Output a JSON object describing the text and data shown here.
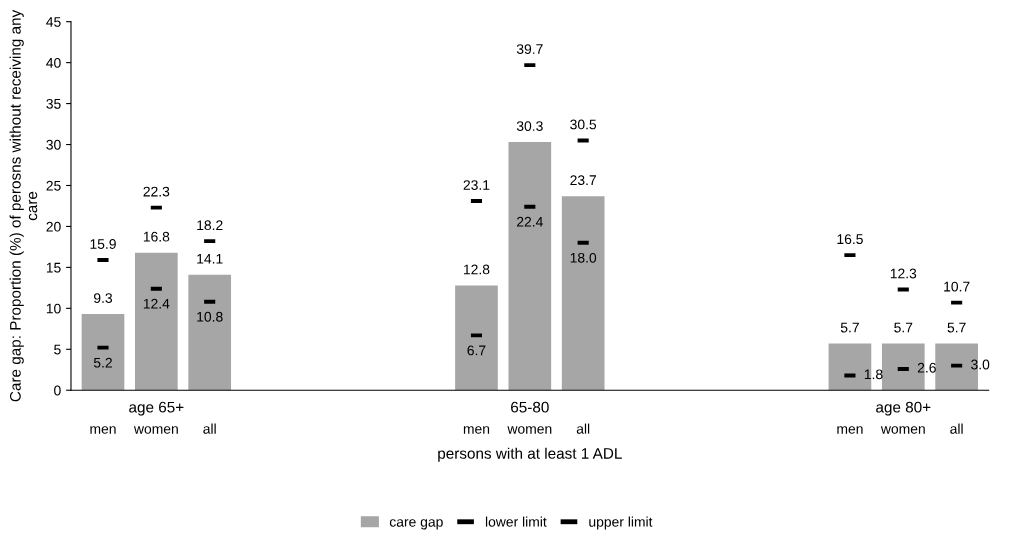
{
  "chart_data": {
    "type": "bar",
    "categories": [
      "men",
      "women",
      "all",
      null,
      null,
      null,
      null,
      "men",
      "women",
      "all",
      null,
      null,
      null,
      null,
      "men",
      "women",
      "all"
    ],
    "series": [
      {
        "name": "care gap",
        "color": "#a6a6a6",
        "values": [
          9.3,
          16.8,
          14.1,
          null,
          null,
          null,
          null,
          12.8,
          30.3,
          23.7,
          null,
          null,
          null,
          null,
          5.7,
          5.7,
          5.7
        ],
        "value_labels": [
          "9.3",
          "16.8",
          "14.1",
          null,
          null,
          null,
          null,
          "12.8",
          "30.3",
          "23.7",
          null,
          null,
          null,
          null,
          "5.7",
          "5.7",
          "5.7"
        ]
      },
      {
        "name": "lower limit",
        "type": "scatter",
        "color": "#000000",
        "values": [
          5.2,
          12.4,
          10.8,
          null,
          null,
          null,
          null,
          6.7,
          22.4,
          18.0,
          null,
          null,
          null,
          null,
          1.8,
          2.6,
          3.0
        ],
        "value_labels": [
          "5.2",
          "12.4",
          "10.8",
          null,
          null,
          null,
          null,
          "6.7",
          "22.4",
          "18.0",
          null,
          null,
          null,
          null,
          "1.8",
          "2.6",
          "3.0"
        ]
      },
      {
        "name": "upper limit",
        "type": "scatter",
        "color": "#000000",
        "values": [
          15.9,
          22.3,
          18.2,
          null,
          null,
          null,
          null,
          23.1,
          39.7,
          30.5,
          null,
          null,
          null,
          null,
          16.5,
          12.3,
          10.7
        ],
        "value_labels": [
          "15.9",
          "22.3",
          "18.2",
          null,
          null,
          null,
          null,
          "23.1",
          "39.7",
          "30.5",
          null,
          null,
          null,
          null,
          "16.5",
          "12.3",
          "10.7"
        ]
      }
    ],
    "ylabel": "Care gap: Proportion (%) of perosns without receiving any care",
    "xlabel": "persons with at least 1 ADL",
    "annotations": [
      "age 65+",
      "65-80",
      "age 80+"
    ],
    "ylim": [
      0,
      45
    ],
    "yticks": [
      0,
      5,
      10,
      15,
      20,
      25,
      30,
      35,
      40,
      45
    ],
    "grid": false,
    "legend": "bottom"
  }
}
